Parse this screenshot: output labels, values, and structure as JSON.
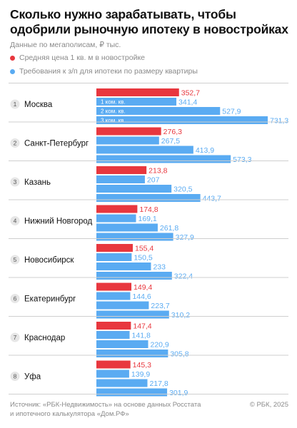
{
  "header": {
    "title": "Сколько нужно зарабатывать, чтобы одобрили рыночную ипотеку в новостройках",
    "subtitle": "Данные по мегаполисам, ₽ тыс."
  },
  "legend": [
    {
      "label": "Средняя цена 1 кв. м в новостройке",
      "color": "#e8373e"
    },
    {
      "label": "Требования к з/п для ипотеки по размеру квартиры",
      "color": "#5aabf2"
    }
  ],
  "footer": {
    "source_line1": "Источник: «РБК-Недвижимость» на основе данных Росстата",
    "source_line2": "и ипотечного калькулятора «Дом.РФ»",
    "copyright": "© РБК, 2025"
  },
  "colors": {
    "red": "#e8373e",
    "blue": "#5aabf2",
    "divider": "#cfcfcf",
    "circle": "#e6e6e6"
  },
  "chart_data": {
    "type": "bar",
    "orientation": "horizontal",
    "unit": "₽ тыс.",
    "bar_labels": [
      "1 ком. кв.",
      "2 ком. кв.",
      "3 ком. кв."
    ],
    "series": [
      {
        "name": "Средняя цена 1 кв. м в новостройке",
        "values": [
          352.7,
          276.3,
          213.8,
          174.8,
          155.4,
          149.4,
          147.4,
          145.3
        ]
      },
      {
        "name": "1 ком. кв.",
        "values": [
          341.4,
          267.5,
          207,
          169.1,
          150.5,
          144.6,
          141.8,
          139.9
        ]
      },
      {
        "name": "2 ком. кв.",
        "values": [
          527.9,
          413.9,
          320.5,
          261.8,
          233,
          223.7,
          220.9,
          217.8
        ]
      },
      {
        "name": "3 ком. кв.",
        "values": [
          731.3,
          573.3,
          443.7,
          327.9,
          322.4,
          310.2,
          305.8,
          301.9
        ]
      }
    ],
    "categories": [
      {
        "rank": "1",
        "city": "Москва",
        "labels": [
          "352,7",
          "341,4",
          "527,9",
          "731,3"
        ]
      },
      {
        "rank": "2",
        "city": "Санкт-Петербург",
        "labels": [
          "276,3",
          "267,5",
          "413,9",
          "573,3"
        ]
      },
      {
        "rank": "3",
        "city": "Казань",
        "labels": [
          "213,8",
          "207",
          "320,5",
          "443,7"
        ]
      },
      {
        "rank": "4",
        "city": "Нижний Новгород",
        "labels": [
          "174,8",
          "169,1",
          "261,8",
          "327,9"
        ]
      },
      {
        "rank": "5",
        "city": "Новосибирск",
        "labels": [
          "155,4",
          "150,5",
          "233",
          "322,4"
        ]
      },
      {
        "rank": "6",
        "city": "Екатеринбург",
        "labels": [
          "149,4",
          "144,6",
          "223,7",
          "310,2"
        ]
      },
      {
        "rank": "7",
        "city": "Краснодар",
        "labels": [
          "147,4",
          "141,8",
          "220,9",
          "305,8"
        ]
      },
      {
        "rank": "8",
        "city": "Уфа",
        "labels": [
          "145,3",
          "139,9",
          "217,8",
          "301,9"
        ]
      }
    ]
  }
}
